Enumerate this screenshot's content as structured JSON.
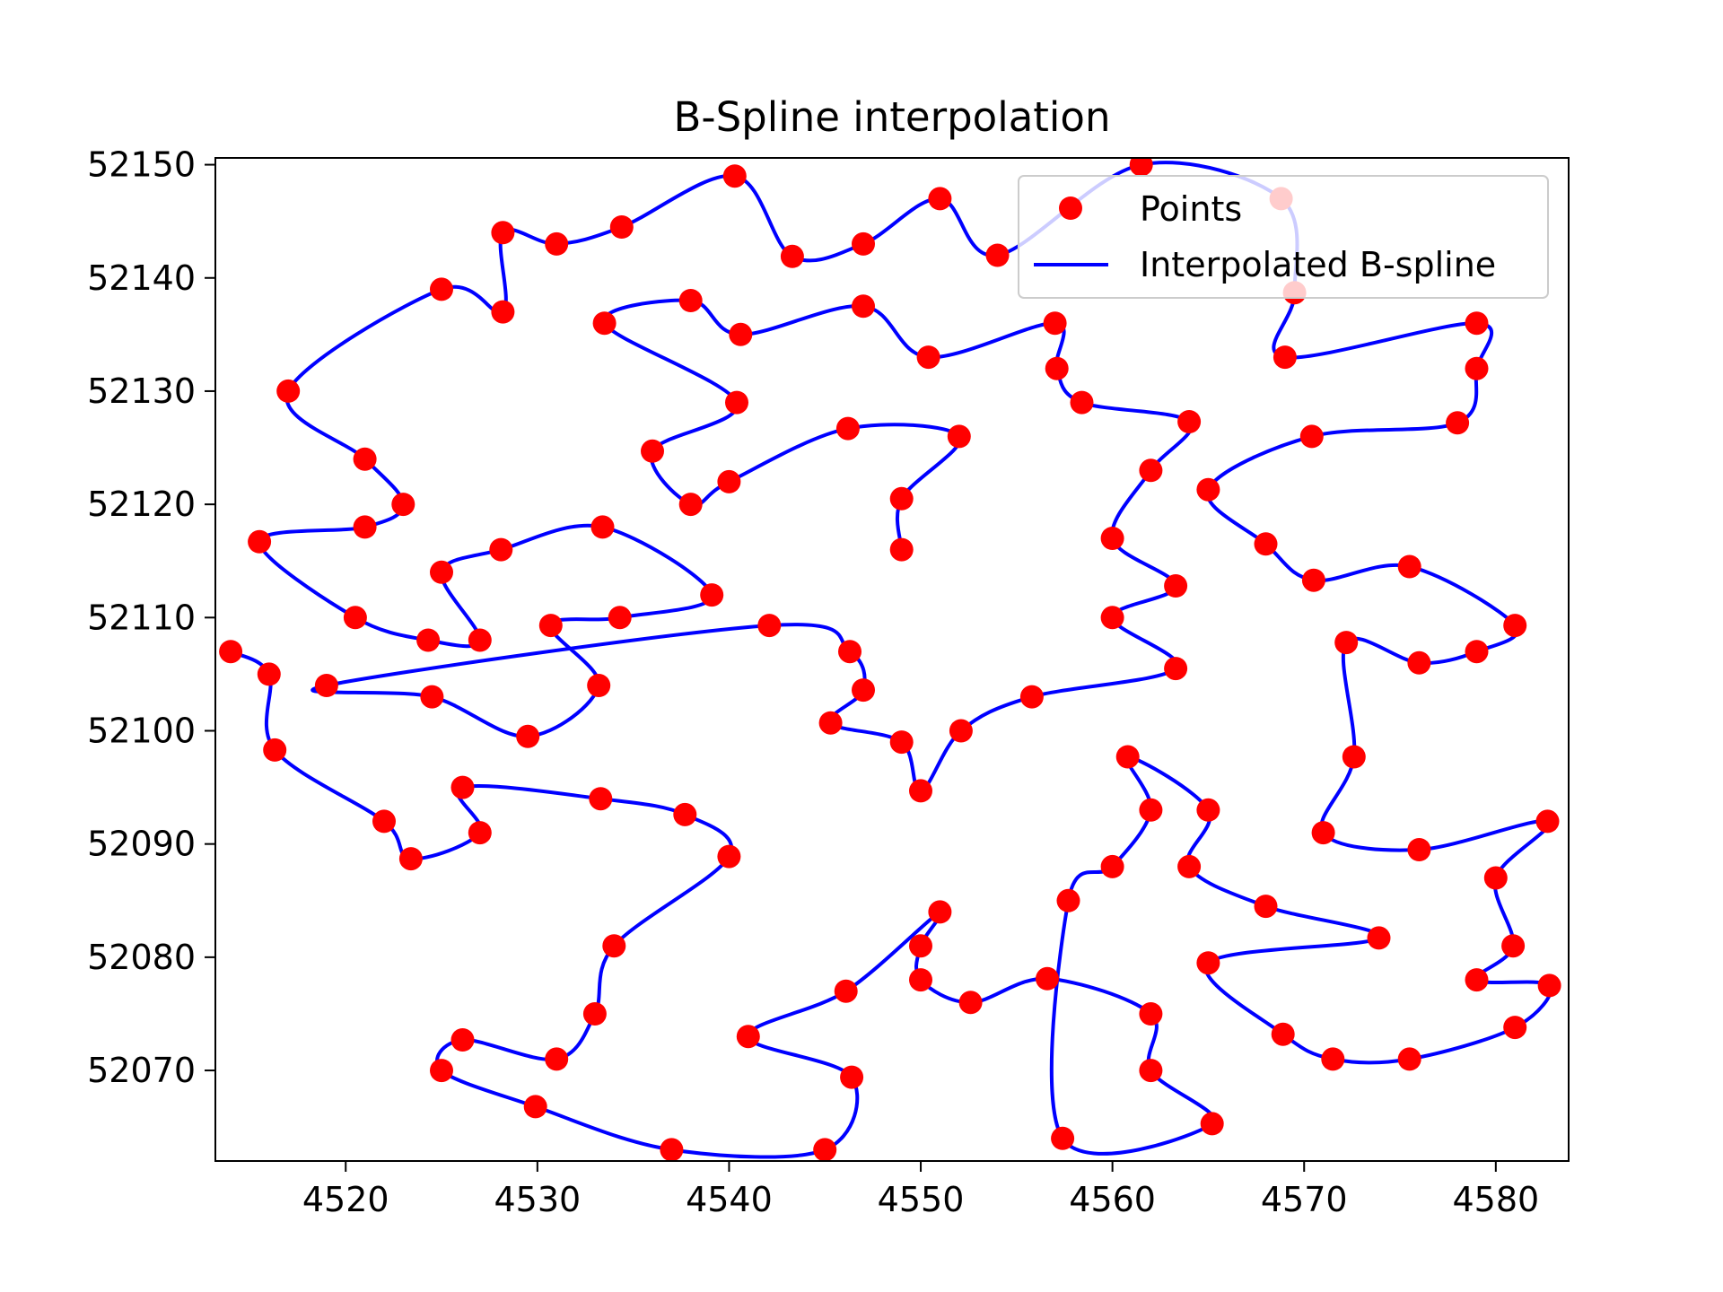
{
  "chart_data": {
    "type": "scatter",
    "title": "B-Spline interpolation",
    "xlabel": "",
    "ylabel": "",
    "xlim": [
      4513.2,
      4583.8
    ],
    "ylim": [
      52062.0,
      52150.6
    ],
    "x_ticks": [
      4520,
      4530,
      4540,
      4550,
      4560,
      4570,
      4580
    ],
    "x_tick_labels": [
      "4520",
      "4530",
      "4540",
      "4550",
      "4560",
      "4570",
      "4580"
    ],
    "y_ticks": [
      52070,
      52080,
      52090,
      52100,
      52110,
      52120,
      52130,
      52140,
      52150
    ],
    "y_tick_labels": [
      "52070",
      "52080",
      "52090",
      "52100",
      "52110",
      "52120",
      "52130",
      "52140",
      "52150"
    ],
    "grid": false,
    "legend_position": "top-right",
    "colors": {
      "points": "#ff0000",
      "spline": "#0000ff"
    },
    "series": [
      {
        "name": "Points",
        "kind": "scatter",
        "points": [
          [
            4514.0,
            52107.0
          ],
          [
            4516.0,
            52105.0
          ],
          [
            4516.3,
            52098.3
          ],
          [
            4522.0,
            52092.0
          ],
          [
            4523.4,
            52088.7
          ],
          [
            4527.0,
            52091.0
          ],
          [
            4526.1,
            52095.0
          ],
          [
            4533.3,
            52094.0
          ],
          [
            4537.7,
            52092.6
          ],
          [
            4540.0,
            52088.9
          ],
          [
            4534.0,
            52081.0
          ],
          [
            4533.0,
            52075.0
          ],
          [
            4531.0,
            52071.0
          ],
          [
            4526.1,
            52072.7
          ],
          [
            4525.0,
            52070.0
          ],
          [
            4529.9,
            52066.8
          ],
          [
            4537.0,
            52063.0
          ],
          [
            4545.0,
            52063.0
          ],
          [
            4546.4,
            52069.4
          ],
          [
            4541.0,
            52073.0
          ],
          [
            4546.1,
            52077.0
          ],
          [
            4551.0,
            52084.0
          ],
          [
            4550.0,
            52081.0
          ],
          [
            4550.0,
            52078.0
          ],
          [
            4552.6,
            52076.0
          ],
          [
            4556.6,
            52078.1
          ],
          [
            4562.0,
            52075.0
          ],
          [
            4562.0,
            52070.0
          ],
          [
            4565.2,
            52065.3
          ],
          [
            4557.4,
            52064.0
          ],
          [
            4557.7,
            52085.0
          ],
          [
            4560.0,
            52088.0
          ],
          [
            4562.0,
            52093.0
          ],
          [
            4560.8,
            52097.7
          ],
          [
            4565.0,
            52093.0
          ],
          [
            4564.0,
            52088.0
          ],
          [
            4568.0,
            52084.5
          ],
          [
            4573.9,
            52081.7
          ],
          [
            4565.0,
            52079.5
          ],
          [
            4568.9,
            52073.2
          ],
          [
            4571.5,
            52071.0
          ],
          [
            4575.5,
            52071.0
          ],
          [
            4581.0,
            52073.8
          ],
          [
            4582.8,
            52077.5
          ],
          [
            4579.0,
            52078.0
          ],
          [
            4580.9,
            52081.0
          ],
          [
            4580.0,
            52087.0
          ],
          [
            4582.7,
            52092.0
          ],
          [
            4576.0,
            52089.5
          ],
          [
            4571.0,
            52091.0
          ],
          [
            4572.6,
            52097.7
          ],
          [
            4572.2,
            52107.8
          ],
          [
            4576.0,
            52106.0
          ],
          [
            4579.0,
            52107.0
          ],
          [
            4581.0,
            52109.3
          ],
          [
            4575.5,
            52114.5
          ],
          [
            4570.5,
            52113.3
          ],
          [
            4568.0,
            52116.5
          ],
          [
            4565.0,
            52121.3
          ],
          [
            4570.4,
            52126.0
          ],
          [
            4578.0,
            52127.2
          ],
          [
            4579.0,
            52132.0
          ],
          [
            4579.0,
            52136.0
          ],
          [
            4569.0,
            52133.0
          ],
          [
            4569.5,
            52138.7
          ],
          [
            4568.8,
            52147.0
          ],
          [
            4561.5,
            52150.0
          ],
          [
            4554.0,
            52142.0
          ],
          [
            4551.0,
            52147.0
          ],
          [
            4547.0,
            52143.0
          ],
          [
            4543.3,
            52141.9
          ],
          [
            4540.3,
            52149.0
          ],
          [
            4534.4,
            52144.5
          ],
          [
            4531.0,
            52143.0
          ],
          [
            4528.2,
            52144.0
          ],
          [
            4528.2,
            52137.0
          ],
          [
            4525.0,
            52139.0
          ],
          [
            4517.0,
            52130.0
          ],
          [
            4521.0,
            52124.0
          ],
          [
            4523.0,
            52120.0
          ],
          [
            4521.0,
            52118.0
          ],
          [
            4515.5,
            52116.7
          ],
          [
            4520.5,
            52110.0
          ],
          [
            4524.3,
            52108.0
          ],
          [
            4527.0,
            52108.0
          ],
          [
            4525.0,
            52114.0
          ],
          [
            4528.1,
            52116.0
          ],
          [
            4533.4,
            52118.0
          ],
          [
            4539.1,
            52112.0
          ],
          [
            4534.3,
            52110.0
          ],
          [
            4530.7,
            52109.3
          ],
          [
            4533.2,
            52104.0
          ],
          [
            4529.5,
            52099.5
          ],
          [
            4524.5,
            52103.0
          ],
          [
            4519.0,
            52104.0
          ],
          [
            4542.1,
            52109.3
          ],
          [
            4546.3,
            52107.0
          ],
          [
            4547.0,
            52103.6
          ],
          [
            4545.3,
            52100.7
          ],
          [
            4549.0,
            52099.0
          ],
          [
            4550.0,
            52094.7
          ],
          [
            4552.1,
            52100.0
          ],
          [
            4555.8,
            52103.0
          ],
          [
            4563.3,
            52105.5
          ],
          [
            4560.0,
            52110.0
          ],
          [
            4563.3,
            52112.8
          ],
          [
            4560.0,
            52117.0
          ],
          [
            4562.0,
            52123.0
          ],
          [
            4564.0,
            52127.3
          ],
          [
            4558.4,
            52129.0
          ],
          [
            4557.1,
            52132.0
          ],
          [
            4557.0,
            52136.0
          ],
          [
            4550.4,
            52133.0
          ],
          [
            4547.0,
            52137.5
          ],
          [
            4540.6,
            52135.0
          ],
          [
            4538.0,
            52138.0
          ],
          [
            4533.5,
            52136.0
          ],
          [
            4540.4,
            52129.0
          ],
          [
            4536.0,
            52124.7
          ],
          [
            4538.0,
            52120.0
          ],
          [
            4540.0,
            52122.0
          ],
          [
            4546.2,
            52126.7
          ],
          [
            4552.0,
            52126.0
          ],
          [
            4549.0,
            52120.5
          ],
          [
            4549.0,
            52116.0
          ]
        ]
      },
      {
        "name": "Interpolated B-spline",
        "kind": "line"
      }
    ]
  }
}
